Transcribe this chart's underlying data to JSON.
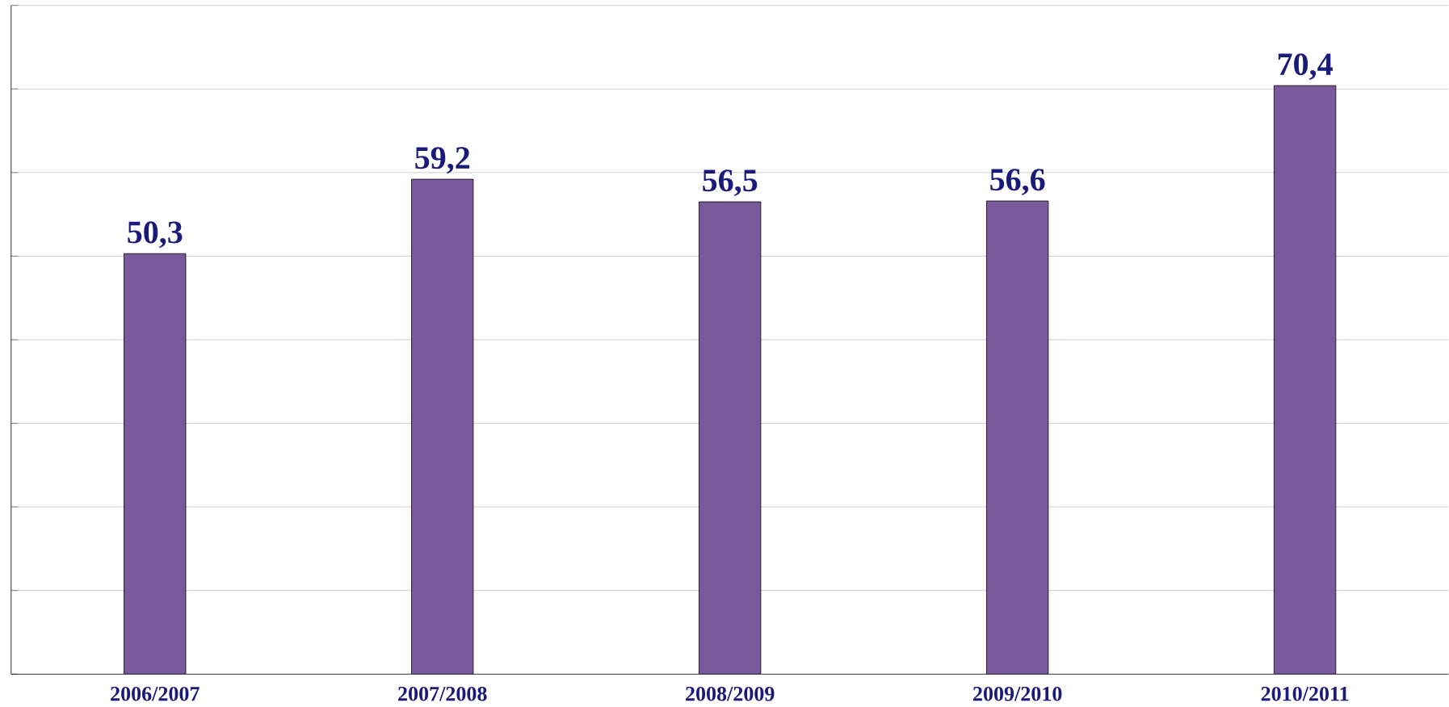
{
  "chart_data": {
    "type": "bar",
    "categories": [
      "2006/2007",
      "2007/2008",
      "2008/2009",
      "2009/2010",
      "2010/2011"
    ],
    "values": [
      50.3,
      59.2,
      56.5,
      56.6,
      70.4
    ],
    "value_labels": [
      "50,3",
      "59,2",
      "56,5",
      "56,6",
      "70,4"
    ],
    "color": "#7a5a9c",
    "ylim": [
      0,
      80
    ],
    "yticks": [
      {
        "value": 0,
        "label": null
      },
      {
        "value": 10,
        "label": null
      },
      {
        "value": 20,
        "label": null
      },
      {
        "value": 30,
        "label": null
      },
      {
        "value": 40,
        "label": null
      },
      {
        "value": 50,
        "label": null
      },
      {
        "value": 60,
        "label": null
      },
      {
        "value": 70,
        "label": null
      },
      {
        "value": 80,
        "label": null
      }
    ],
    "grid": "y",
    "tick_labels": "x"
  }
}
